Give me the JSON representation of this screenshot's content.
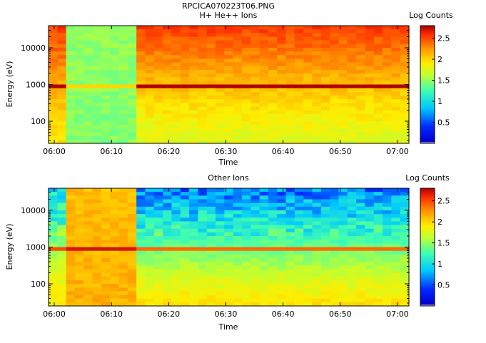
{
  "figure_title": "RPCICA070223T06.PNG",
  "chart_data": [
    {
      "type": "heatmap",
      "title": "H+ He++ Ions",
      "xlabel": "Time",
      "ylabel": "Energy (eV)",
      "x_ticks": [
        "06:00",
        "06:10",
        "06:20",
        "06:30",
        "06:40",
        "06:50",
        "07:00"
      ],
      "x_range": [
        "05:59",
        "07:02"
      ],
      "y_scale": "log",
      "y_ticks": [
        "100",
        "1000",
        "10000"
      ],
      "y_range": [
        25,
        40000
      ],
      "colorbar_label": "Log Counts",
      "colorbar_ticks": [
        "0.5",
        "1",
        "1.5",
        "2",
        "2.5"
      ],
      "colorbar_range": [
        0,
        2.8
      ],
      "time_segments": [
        {
          "start": "05:59",
          "end": "06:02",
          "low_energy_value": 1.9,
          "high_energy_value": 2.55,
          "line_at_1000eV": 2.8
        },
        {
          "start": "06:02",
          "end": "06:14",
          "low_energy_value": 1.45,
          "high_energy_value": 1.5,
          "line_at_1000eV": 2.0
        },
        {
          "start": "06:14",
          "end": "07:02",
          "low_energy_value": 1.75,
          "high_energy_value": 2.55,
          "line_at_1000eV": 2.8
        }
      ]
    },
    {
      "type": "heatmap",
      "title": "Other Ions",
      "xlabel": "Time",
      "ylabel": "Energy (eV)",
      "x_ticks": [
        "06:00",
        "06:10",
        "06:20",
        "06:30",
        "06:40",
        "06:50",
        "07:00"
      ],
      "x_range": [
        "05:59",
        "07:02"
      ],
      "y_scale": "log",
      "y_ticks": [
        "100",
        "1000",
        "10000"
      ],
      "y_range": [
        25,
        40000
      ],
      "colorbar_label": "Log Counts",
      "colorbar_ticks": [
        "0.5",
        "1",
        "1.5",
        "2",
        "2.5"
      ],
      "colorbar_range": [
        0,
        2.8
      ],
      "time_segments": [
        {
          "start": "05:59",
          "end": "06:02",
          "low_energy_value": 1.95,
          "high_energy_value": 0.9,
          "line_at_1000eV": 2.5
        },
        {
          "start": "06:02",
          "end": "06:14",
          "low_energy_value": 2.15,
          "high_energy_value": 2.1,
          "line_at_1000eV": 2.7
        },
        {
          "start": "06:14",
          "end": "07:02",
          "low_energy_value": 1.95,
          "high_energy_value": 0.6,
          "line_at_1000eV": 2.4
        }
      ]
    }
  ]
}
